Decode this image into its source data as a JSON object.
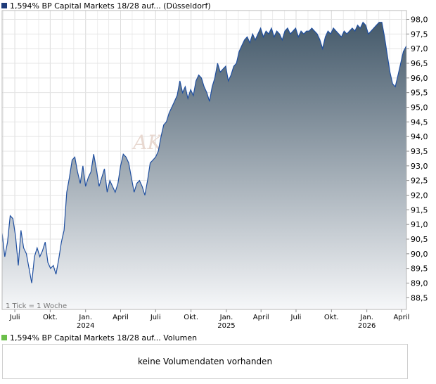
{
  "header": {
    "title": "1,594% BP Capital Markets 18/28 auf... (Düsseldorf)",
    "swatch_color": "#1f3c7a"
  },
  "volume": {
    "title": "1,594% BP Capital Markets 18/28 auf... Volumen",
    "swatch_color": "#6bbf4a",
    "empty_message": "keine Volumendaten vorhanden"
  },
  "watermark": "AKTIE",
  "chart_data": {
    "type": "area",
    "title": "",
    "xlabel": "",
    "ylabel": "",
    "tick_info": "1 Tick = 1 Woche",
    "ylim": [
      88.1,
      98.3
    ],
    "y_ticks": [
      88.5,
      89.0,
      89.5,
      90.0,
      90.5,
      91.0,
      91.5,
      92.0,
      92.5,
      93.0,
      93.5,
      94.0,
      94.5,
      95.0,
      95.5,
      96.0,
      96.5,
      97.0,
      97.5,
      98.0
    ],
    "y_tick_labels": [
      "88,5",
      "89,0",
      "89,5",
      "90,0",
      "90,5",
      "91,0",
      "91,5",
      "92,0",
      "92,5",
      "93,0",
      "93,5",
      "94,0",
      "94,5",
      "95,0",
      "95,5",
      "96,0",
      "96,5",
      "97,0",
      "97,5",
      "98,0"
    ],
    "xlim": [
      "2023-05-29",
      "2026-04-14"
    ],
    "x_ticks": [
      {
        "date": "2023-07-01",
        "label": "Juli",
        "year": ""
      },
      {
        "date": "2023-10-01",
        "label": "Okt.",
        "year": ""
      },
      {
        "date": "2024-01-01",
        "label": "Jan.",
        "year": "2024"
      },
      {
        "date": "2024-04-01",
        "label": "April",
        "year": ""
      },
      {
        "date": "2024-07-01",
        "label": "Juli",
        "year": ""
      },
      {
        "date": "2024-10-01",
        "label": "Okt.",
        "year": ""
      },
      {
        "date": "2025-01-01",
        "label": "Jan.",
        "year": "2025"
      },
      {
        "date": "2025-04-01",
        "label": "April",
        "year": ""
      },
      {
        "date": "2025-07-01",
        "label": "Juli",
        "year": ""
      },
      {
        "date": "2025-10-01",
        "label": "Okt.",
        "year": ""
      },
      {
        "date": "2026-01-01",
        "label": "Jan.",
        "year": "2026"
      },
      {
        "date": "2026-04-01",
        "label": "April",
        "year": ""
      }
    ],
    "grid": true,
    "line_color": "#1f4fa0",
    "fill_top_color": "#455a6b",
    "fill_bottom_color": "#f6f7f9",
    "series": [
      {
        "name": "",
        "points": [
          [
            "2023-05-29",
            90.7
          ],
          [
            "2023-06-05",
            89.9
          ],
          [
            "2023-06-12",
            90.4
          ],
          [
            "2023-06-19",
            91.3
          ],
          [
            "2023-06-26",
            91.2
          ],
          [
            "2023-07-03",
            90.6
          ],
          [
            "2023-07-10",
            89.6
          ],
          [
            "2023-07-17",
            90.8
          ],
          [
            "2023-07-24",
            90.2
          ],
          [
            "2023-07-31",
            90.0
          ],
          [
            "2023-08-07",
            89.5
          ],
          [
            "2023-08-14",
            89.0
          ],
          [
            "2023-08-21",
            89.9
          ],
          [
            "2023-08-28",
            90.2
          ],
          [
            "2023-09-04",
            89.9
          ],
          [
            "2023-09-11",
            90.1
          ],
          [
            "2023-09-18",
            90.4
          ],
          [
            "2023-09-25",
            89.7
          ],
          [
            "2023-10-02",
            89.5
          ],
          [
            "2023-10-09",
            89.6
          ],
          [
            "2023-10-16",
            89.3
          ],
          [
            "2023-10-23",
            89.8
          ],
          [
            "2023-10-30",
            90.4
          ],
          [
            "2023-11-06",
            90.8
          ],
          [
            "2023-11-13",
            92.1
          ],
          [
            "2023-11-20",
            92.6
          ],
          [
            "2023-11-27",
            93.2
          ],
          [
            "2023-12-04",
            93.3
          ],
          [
            "2023-12-11",
            92.8
          ],
          [
            "2023-12-18",
            92.4
          ],
          [
            "2023-12-25",
            93.0
          ],
          [
            "2024-01-01",
            92.3
          ],
          [
            "2024-01-08",
            92.6
          ],
          [
            "2024-01-15",
            92.8
          ],
          [
            "2024-01-22",
            93.4
          ],
          [
            "2024-01-29",
            92.9
          ],
          [
            "2024-02-05",
            92.3
          ],
          [
            "2024-02-12",
            92.6
          ],
          [
            "2024-02-19",
            92.9
          ],
          [
            "2024-02-26",
            92.1
          ],
          [
            "2024-03-04",
            92.5
          ],
          [
            "2024-03-11",
            92.3
          ],
          [
            "2024-03-18",
            92.1
          ],
          [
            "2024-03-25",
            92.4
          ],
          [
            "2024-04-01",
            93.0
          ],
          [
            "2024-04-08",
            93.4
          ],
          [
            "2024-04-15",
            93.3
          ],
          [
            "2024-04-22",
            93.1
          ],
          [
            "2024-04-29",
            92.6
          ],
          [
            "2024-05-06",
            92.1
          ],
          [
            "2024-05-13",
            92.4
          ],
          [
            "2024-05-20",
            92.5
          ],
          [
            "2024-05-27",
            92.3
          ],
          [
            "2024-06-03",
            92.0
          ],
          [
            "2024-06-10",
            92.5
          ],
          [
            "2024-06-17",
            93.1
          ],
          [
            "2024-06-24",
            93.2
          ],
          [
            "2024-07-01",
            93.3
          ],
          [
            "2024-07-08",
            93.5
          ],
          [
            "2024-07-15",
            94.0
          ],
          [
            "2024-07-22",
            94.4
          ],
          [
            "2024-07-29",
            94.5
          ],
          [
            "2024-08-05",
            94.8
          ],
          [
            "2024-08-12",
            95.0
          ],
          [
            "2024-08-19",
            95.2
          ],
          [
            "2024-08-26",
            95.4
          ],
          [
            "2024-09-02",
            95.9
          ],
          [
            "2024-09-09",
            95.5
          ],
          [
            "2024-09-16",
            95.7
          ],
          [
            "2024-09-23",
            95.3
          ],
          [
            "2024-09-30",
            95.6
          ],
          [
            "2024-10-07",
            95.4
          ],
          [
            "2024-10-14",
            95.9
          ],
          [
            "2024-10-21",
            96.1
          ],
          [
            "2024-10-28",
            96.0
          ],
          [
            "2024-11-04",
            95.7
          ],
          [
            "2024-11-11",
            95.5
          ],
          [
            "2024-11-18",
            95.2
          ],
          [
            "2024-11-25",
            95.7
          ],
          [
            "2024-12-02",
            96.0
          ],
          [
            "2024-12-09",
            96.5
          ],
          [
            "2024-12-16",
            96.2
          ],
          [
            "2024-12-23",
            96.3
          ],
          [
            "2024-12-30",
            96.4
          ],
          [
            "2025-01-06",
            95.9
          ],
          [
            "2025-01-13",
            96.1
          ],
          [
            "2025-01-20",
            96.4
          ],
          [
            "2025-01-27",
            96.5
          ],
          [
            "2025-02-03",
            96.9
          ],
          [
            "2025-02-10",
            97.1
          ],
          [
            "2025-02-17",
            97.3
          ],
          [
            "2025-02-24",
            97.4
          ],
          [
            "2025-03-03",
            97.2
          ],
          [
            "2025-03-10",
            97.5
          ],
          [
            "2025-03-17",
            97.3
          ],
          [
            "2025-03-24",
            97.5
          ],
          [
            "2025-03-31",
            97.7
          ],
          [
            "2025-04-07",
            97.4
          ],
          [
            "2025-04-14",
            97.6
          ],
          [
            "2025-04-21",
            97.5
          ],
          [
            "2025-04-28",
            97.7
          ],
          [
            "2025-05-05",
            97.4
          ],
          [
            "2025-05-12",
            97.6
          ],
          [
            "2025-05-19",
            97.5
          ],
          [
            "2025-05-26",
            97.3
          ],
          [
            "2025-06-02",
            97.6
          ],
          [
            "2025-06-09",
            97.7
          ],
          [
            "2025-06-16",
            97.5
          ],
          [
            "2025-06-23",
            97.6
          ],
          [
            "2025-06-30",
            97.7
          ],
          [
            "2025-07-07",
            97.4
          ],
          [
            "2025-07-14",
            97.6
          ],
          [
            "2025-07-21",
            97.5
          ],
          [
            "2025-07-28",
            97.6
          ],
          [
            "2025-08-04",
            97.6
          ],
          [
            "2025-08-11",
            97.7
          ],
          [
            "2025-08-18",
            97.6
          ],
          [
            "2025-08-25",
            97.5
          ],
          [
            "2025-09-01",
            97.3
          ],
          [
            "2025-09-08",
            97.0
          ],
          [
            "2025-09-15",
            97.4
          ],
          [
            "2025-09-22",
            97.6
          ],
          [
            "2025-09-29",
            97.5
          ],
          [
            "2025-10-06",
            97.7
          ],
          [
            "2025-10-13",
            97.6
          ],
          [
            "2025-10-20",
            97.5
          ],
          [
            "2025-10-27",
            97.4
          ],
          [
            "2025-11-03",
            97.6
          ],
          [
            "2025-11-10",
            97.5
          ],
          [
            "2025-11-17",
            97.6
          ],
          [
            "2025-11-24",
            97.7
          ],
          [
            "2025-12-01",
            97.6
          ],
          [
            "2025-12-08",
            97.8
          ],
          [
            "2025-12-15",
            97.7
          ],
          [
            "2025-12-22",
            97.9
          ],
          [
            "2025-12-29",
            97.8
          ],
          [
            "2026-01-05",
            97.5
          ],
          [
            "2026-01-12",
            97.6
          ],
          [
            "2026-01-19",
            97.7
          ],
          [
            "2026-01-26",
            97.8
          ],
          [
            "2026-02-02",
            97.9
          ],
          [
            "2026-02-09",
            97.9
          ],
          [
            "2026-02-16",
            97.4
          ],
          [
            "2026-02-23",
            96.8
          ],
          [
            "2026-03-02",
            96.2
          ],
          [
            "2026-03-09",
            95.8
          ],
          [
            "2026-03-16",
            95.7
          ],
          [
            "2026-03-23",
            96.1
          ],
          [
            "2026-03-30",
            96.5
          ],
          [
            "2026-04-06",
            96.9
          ],
          [
            "2026-04-14",
            97.1
          ]
        ]
      }
    ]
  }
}
